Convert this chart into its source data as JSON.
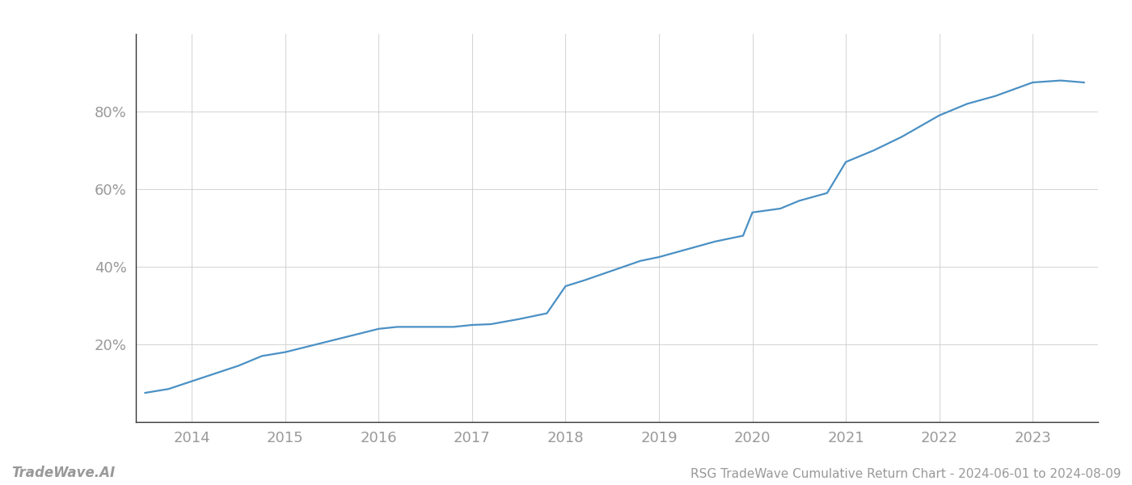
{
  "title": "RSG TradeWave Cumulative Return Chart - 2024-06-01 to 2024-08-09",
  "watermark": "TradeWave.AI",
  "line_color": "#4a90c4",
  "background_color": "#ffffff",
  "grid_color": "#cccccc",
  "x_years": [
    2013.5,
    2013.75,
    2014.0,
    2014.25,
    2014.5,
    2014.75,
    2015.0,
    2015.25,
    2015.5,
    2015.75,
    2016.0,
    2016.2,
    2016.4,
    2016.6,
    2016.8,
    2017.0,
    2017.2,
    2017.5,
    2017.8,
    2018.0,
    2018.2,
    2018.5,
    2018.8,
    2019.0,
    2019.3,
    2019.6,
    2019.9,
    2020.0,
    2020.3,
    2020.5,
    2020.8,
    2021.0,
    2021.3,
    2021.6,
    2022.0,
    2022.3,
    2022.6,
    2023.0,
    2023.3,
    2023.55
  ],
  "y_values": [
    7.5,
    8.5,
    10.5,
    12.5,
    14.5,
    17.0,
    18.0,
    19.5,
    21.0,
    22.5,
    24.0,
    24.5,
    24.5,
    24.5,
    24.5,
    25.0,
    25.2,
    26.5,
    28.0,
    35.0,
    36.5,
    39.0,
    41.5,
    42.5,
    44.5,
    46.5,
    48.0,
    54.0,
    55.0,
    57.0,
    59.0,
    67.0,
    70.0,
    73.5,
    79.0,
    82.0,
    84.0,
    87.5,
    88.0,
    87.5
  ],
  "ylim": [
    0,
    100
  ],
  "yticks": [
    20,
    40,
    60,
    80
  ],
  "xlim": [
    2013.4,
    2023.7
  ],
  "xticks": [
    2014,
    2015,
    2016,
    2017,
    2018,
    2019,
    2020,
    2021,
    2022,
    2023
  ],
  "line_width": 1.6,
  "tick_label_color": "#999999",
  "watermark_color": "#999999",
  "title_color": "#999999",
  "title_fontsize": 11,
  "tick_fontsize": 13,
  "watermark_fontsize": 12,
  "left_spine_color": "#333333",
  "bottom_spine_color": "#333333"
}
